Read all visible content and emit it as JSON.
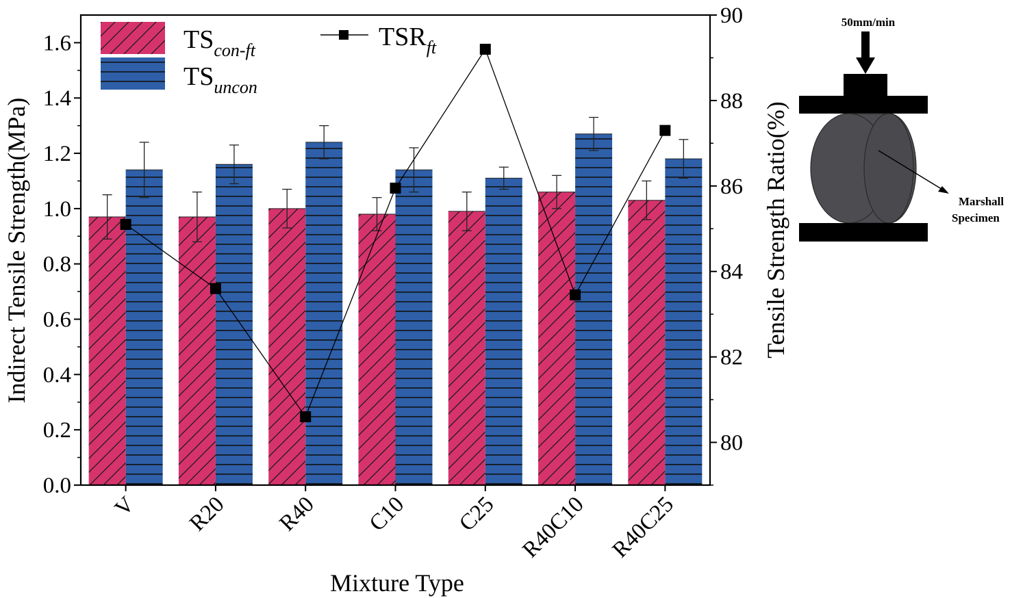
{
  "chart_data": {
    "type": "bar",
    "title": "",
    "xlabel": "Mixture Type",
    "ylabel": "Indirect Tensile Strength(MPa)",
    "y2label": "Tensile Strength Ratio(%)",
    "categories": [
      "V",
      "R20",
      "R40",
      "C10",
      "C25",
      "R40C10",
      "R40C25"
    ],
    "ylim": [
      0,
      1.7
    ],
    "y2lim": [
      79,
      90
    ],
    "yticks": [
      "0.0",
      "0.2",
      "0.4",
      "0.6",
      "0.8",
      "1.0",
      "1.2",
      "1.4",
      "1.6"
    ],
    "y2ticks": [
      "80",
      "82",
      "84",
      "86",
      "88",
      "90"
    ],
    "series": [
      {
        "name": "TS",
        "sub": "con-ft",
        "color": "#d6336c",
        "pattern": "diagonal-hatch",
        "values": [
          0.97,
          0.97,
          1.0,
          0.98,
          0.99,
          1.06,
          1.03
        ],
        "errors": [
          0.08,
          0.09,
          0.07,
          0.06,
          0.07,
          0.06,
          0.07
        ]
      },
      {
        "name": "TS",
        "sub": "uncon",
        "color": "#2e5fa8",
        "pattern": "horizontal-hatch",
        "values": [
          1.14,
          1.16,
          1.24,
          1.14,
          1.11,
          1.27,
          1.18
        ],
        "errors": [
          0.1,
          0.07,
          0.06,
          0.08,
          0.04,
          0.06,
          0.07
        ]
      },
      {
        "name": "TSR",
        "sub": "ft",
        "type": "line",
        "axis": "right",
        "color": "#000000",
        "values": [
          85.1,
          83.6,
          80.6,
          85.95,
          89.2,
          83.45,
          87.3
        ]
      }
    ],
    "legend_position": "top-left",
    "inset": {
      "speed_label": "50mm/min",
      "specimen_label_line1": "Marshall",
      "specimen_label_line2": "Specimen"
    }
  }
}
